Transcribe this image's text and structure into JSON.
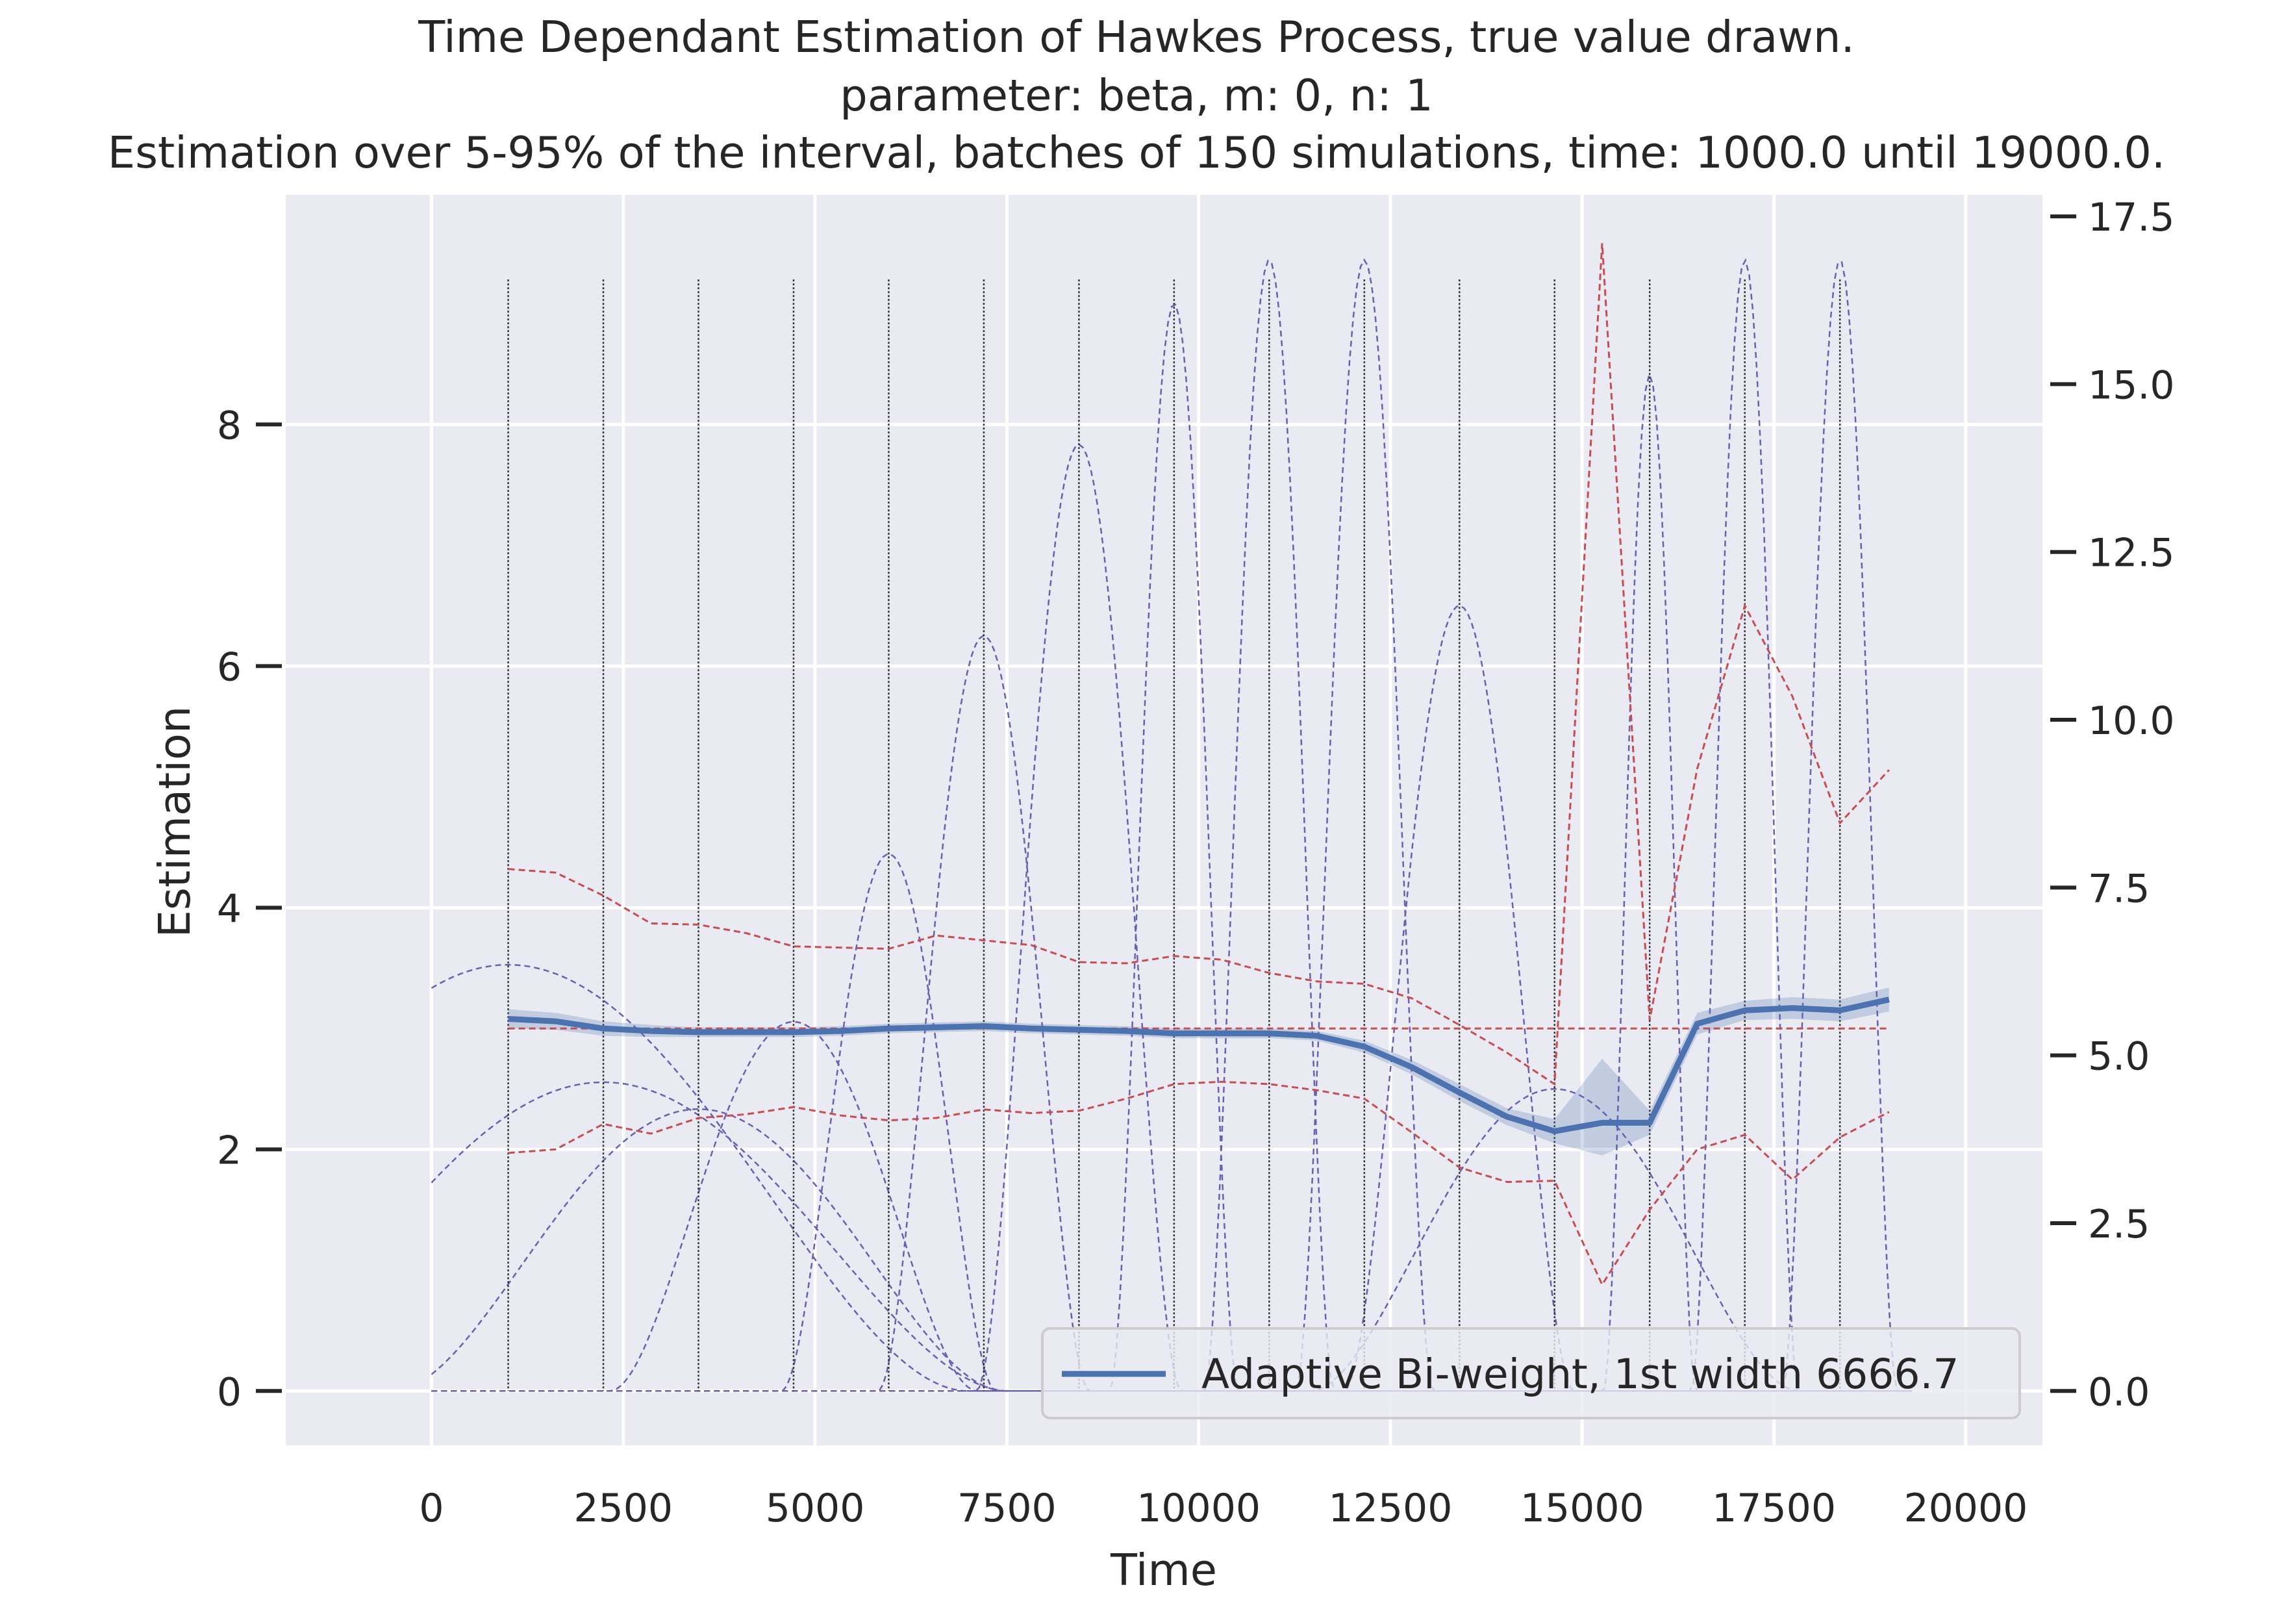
{
  "chart_data": {
    "type": "line",
    "title_lines": [
      "Time Dependant Estimation of Hawkes Process, true value drawn.",
      "parameter: beta, m: 0, n: 1",
      "Estimation over 5-95% of the interval, batches of 150 simulations, time: 1000.0 until 19000.0."
    ],
    "xlabel": "Time",
    "ylabel": "Estimation",
    "xlim": [
      -1900,
      21000
    ],
    "ylim": [
      -0.45,
      9.9
    ],
    "y2lim": [
      -0.81,
      17.82
    ],
    "x_ticks": [
      0,
      2500,
      5000,
      7500,
      10000,
      12500,
      15000,
      17500,
      20000
    ],
    "x_tick_labels": [
      "0",
      "2500",
      "5000",
      "7500",
      "10000",
      "12500",
      "15000",
      "17500",
      "20000"
    ],
    "y_ticks": [
      0,
      2,
      4,
      6,
      8
    ],
    "y_tick_labels": [
      "0",
      "2",
      "4",
      "6",
      "8"
    ],
    "y2_ticks": [
      0,
      2.5,
      5,
      7.5,
      10,
      12.5,
      15,
      17.5
    ],
    "y2_tick_labels": [
      "0.0",
      "2.5",
      "5.0",
      "7.5",
      "10.0",
      "12.5",
      "15.0",
      "17.5"
    ],
    "grid": true,
    "legend_position": "lower-right",
    "colors": {
      "background": "#eaeaf2",
      "grid": "#ffffff",
      "estimate": "#4c72b0",
      "band": "#4c72b0",
      "bounds": "#c44e52",
      "kernels": "#6a5fb0",
      "vlines": "#333333",
      "text": "#262626"
    },
    "series": [
      {
        "name": "Adaptive Bi-weight, 1st width 6666.7",
        "role": "estimate",
        "x": [
          1000,
          1620,
          2240,
          2860,
          3480,
          4100,
          4720,
          5340,
          5960,
          6580,
          7200,
          7820,
          8440,
          9060,
          9680,
          10300,
          10920,
          11540,
          12160,
          12780,
          13400,
          14020,
          14640,
          15260,
          15880,
          16500,
          17120,
          17740,
          18360,
          19000
        ],
        "y": [
          3.08,
          3.06,
          3.0,
          2.98,
          2.97,
          2.97,
          2.97,
          2.98,
          3.0,
          3.01,
          3.02,
          3.0,
          2.99,
          2.98,
          2.96,
          2.96,
          2.96,
          2.94,
          2.85,
          2.68,
          2.47,
          2.27,
          2.15,
          2.22,
          2.22,
          3.04,
          3.15,
          3.17,
          3.15,
          3.24
        ],
        "y_lower": [
          3.0,
          2.99,
          2.94,
          2.93,
          2.93,
          2.93,
          2.93,
          2.94,
          2.96,
          2.97,
          2.98,
          2.96,
          2.95,
          2.94,
          2.92,
          2.92,
          2.92,
          2.9,
          2.8,
          2.62,
          2.4,
          2.2,
          2.05,
          1.95,
          2.12,
          2.95,
          3.07,
          3.08,
          3.06,
          3.14
        ],
        "y_upper": [
          3.16,
          3.13,
          3.06,
          3.03,
          3.01,
          3.01,
          3.01,
          3.02,
          3.04,
          3.05,
          3.06,
          3.04,
          3.03,
          3.02,
          3.0,
          3.0,
          3.0,
          2.98,
          2.9,
          2.74,
          2.54,
          2.34,
          2.25,
          2.75,
          2.32,
          3.13,
          3.23,
          3.26,
          3.24,
          3.34
        ]
      },
      {
        "role": "true-value",
        "x": [
          1000,
          19000
        ],
        "y": [
          3.0,
          3.0
        ]
      },
      {
        "role": "upper-bound",
        "x": [
          1000,
          1620,
          2240,
          2860,
          3480,
          4100,
          4720,
          5340,
          5960,
          6580,
          7200,
          7820,
          8440,
          9060,
          9680,
          10300,
          10920,
          11540,
          12160,
          12780,
          13400,
          14020,
          14640,
          15260,
          15880,
          16500,
          17120,
          17740,
          18360,
          19000
        ],
        "y": [
          4.32,
          4.29,
          4.1,
          3.87,
          3.86,
          3.79,
          3.68,
          3.67,
          3.66,
          3.77,
          3.73,
          3.69,
          3.55,
          3.54,
          3.6,
          3.57,
          3.46,
          3.39,
          3.37,
          3.25,
          3.03,
          2.8,
          2.54,
          9.5,
          3.07,
          5.15,
          6.5,
          5.75,
          4.7,
          5.14
        ]
      },
      {
        "role": "lower-bound",
        "x": [
          1000,
          1620,
          2240,
          2860,
          3480,
          4100,
          4720,
          5340,
          5960,
          6580,
          7200,
          7820,
          8440,
          9060,
          9680,
          10300,
          10920,
          11540,
          12160,
          12780,
          13400,
          14020,
          14640,
          15260,
          15880,
          16500,
          17120,
          17740,
          18360,
          19000
        ],
        "y": [
          1.97,
          2.0,
          2.21,
          2.13,
          2.26,
          2.29,
          2.35,
          2.28,
          2.24,
          2.26,
          2.33,
          2.3,
          2.32,
          2.42,
          2.54,
          2.56,
          2.54,
          2.49,
          2.42,
          2.14,
          1.85,
          1.73,
          1.74,
          0.88,
          1.5,
          2.0,
          2.12,
          1.75,
          2.1,
          2.31
        ]
      }
    ],
    "kernels": [
      {
        "center": 1000,
        "half_width": 6000,
        "peak": 6.35
      },
      {
        "center": 2240,
        "half_width": 5300,
        "peak": 4.6
      },
      {
        "center": 3480,
        "half_width": 4000,
        "peak": 4.2
      },
      {
        "center": 4720,
        "half_width": 2400,
        "peak": 5.5
      },
      {
        "center": 5960,
        "half_width": 1400,
        "peak": 8.0
      },
      {
        "center": 7200,
        "half_width": 1380,
        "peak": 11.25
      },
      {
        "center": 8440,
        "half_width": 1340,
        "peak": 14.1
      },
      {
        "center": 9680,
        "half_width": 840,
        "peak": 16.2
      },
      {
        "center": 10920,
        "half_width": 850,
        "peak": 16.85
      },
      {
        "center": 12160,
        "half_width": 900,
        "peak": 16.85
      },
      {
        "center": 13400,
        "half_width": 1500,
        "peak": 11.7
      },
      {
        "center": 14640,
        "half_width": 3200,
        "peak": 4.5
      },
      {
        "center": 15880,
        "half_width": 600,
        "peak": 15.15
      },
      {
        "center": 17120,
        "half_width": 700,
        "peak": 16.85
      },
      {
        "center": 18360,
        "half_width": 750,
        "peak": 16.85
      }
    ],
    "vertical_lines": {
      "x": [
        1000,
        2240,
        3480,
        4720,
        5960,
        7200,
        8440,
        9680,
        10920,
        12160,
        13400,
        14640,
        15880,
        17120,
        18360
      ],
      "y_top": 9.2
    },
    "legend": [
      "Adaptive Bi-weight, 1st width 6666.7"
    ]
  }
}
